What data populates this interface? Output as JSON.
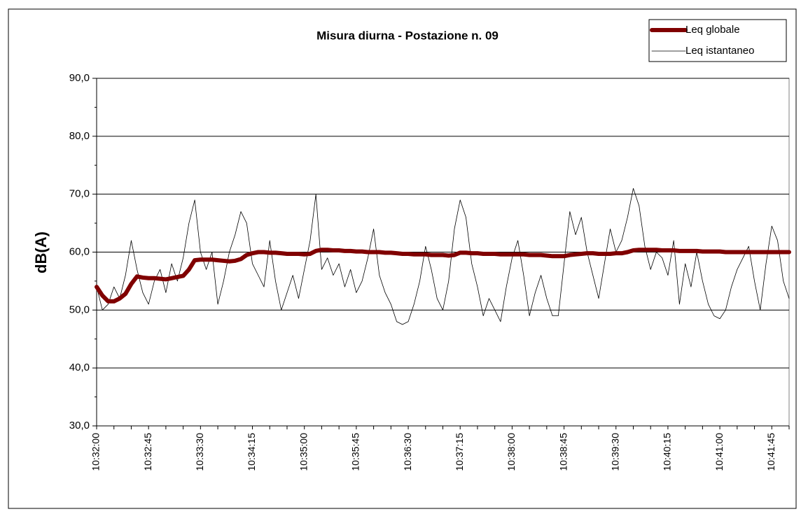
{
  "chart_data": {
    "type": "line",
    "title": "Misura diurna - Postazione n. 09",
    "y_label": "dB(A)",
    "categories": [
      "10:32:00",
      null,
      null,
      null,
      null,
      null,
      null,
      null,
      null,
      "10:32:45",
      null,
      null,
      null,
      null,
      null,
      null,
      null,
      null,
      "10:33:30",
      null,
      null,
      null,
      null,
      null,
      null,
      null,
      null,
      "10:34:15",
      null,
      null,
      null,
      null,
      null,
      null,
      null,
      null,
      "10:35:00",
      null,
      null,
      null,
      null,
      null,
      null,
      null,
      null,
      "10:35:45",
      null,
      null,
      null,
      null,
      null,
      null,
      null,
      null,
      "10:36:30",
      null,
      null,
      null,
      null,
      null,
      null,
      null,
      null,
      "10:37:15",
      null,
      null,
      null,
      null,
      null,
      null,
      null,
      null,
      "10:38:00",
      null,
      null,
      null,
      null,
      null,
      null,
      null,
      null,
      "10:38:45",
      null,
      null,
      null,
      null,
      null,
      null,
      null,
      null,
      "10:39:30",
      null,
      null,
      null,
      null,
      null,
      null,
      null,
      null,
      "10:40:15",
      null,
      null,
      null,
      null,
      null,
      null,
      null,
      null,
      "10:41:00",
      null,
      null,
      null,
      null,
      null,
      null,
      null,
      null,
      "10:41:45",
      null,
      null,
      null
    ],
    "series": [
      {
        "name": "Leq globale",
        "color": "#800000",
        "values": [
          54,
          52.5,
          51.5,
          51.5,
          52,
          52.8,
          54.5,
          55.8,
          55.6,
          55.5,
          55.5,
          55.4,
          55.3,
          55.5,
          55.7,
          55.9,
          57,
          58.6,
          58.7,
          58.7,
          58.7,
          58.6,
          58.5,
          58.4,
          58.5,
          58.8,
          59.5,
          59.8,
          60,
          60,
          59.9,
          59.9,
          59.8,
          59.7,
          59.7,
          59.7,
          59.6,
          59.7,
          60.2,
          60.4,
          60.4,
          60.3,
          60.3,
          60.2,
          60.2,
          60.1,
          60.1,
          60,
          60,
          60,
          59.9,
          59.9,
          59.8,
          59.7,
          59.7,
          59.6,
          59.6,
          59.6,
          59.5,
          59.5,
          59.5,
          59.4,
          59.5,
          59.9,
          59.9,
          59.8,
          59.8,
          59.7,
          59.7,
          59.7,
          59.6,
          59.6,
          59.6,
          59.6,
          59.6,
          59.5,
          59.5,
          59.5,
          59.4,
          59.3,
          59.3,
          59.3,
          59.5,
          59.6,
          59.7,
          59.8,
          59.8,
          59.7,
          59.7,
          59.7,
          59.8,
          59.8,
          60,
          60.3,
          60.4,
          60.4,
          60.4,
          60.4,
          60.3,
          60.3,
          60.3,
          60.2,
          60.2,
          60.2,
          60.2,
          60.1,
          60.1,
          60.1,
          60.1,
          60,
          60,
          60,
          60,
          60,
          60,
          60,
          60,
          60,
          60,
          60,
          60
        ]
      },
      {
        "name": "Leq istantaneo",
        "color": "#000000",
        "values": [
          54,
          50,
          51,
          54,
          52,
          56,
          62,
          57,
          53,
          51,
          55,
          57,
          53,
          58,
          55,
          59,
          65,
          69,
          60,
          57,
          60,
          51,
          55,
          60,
          63,
          67,
          65,
          58,
          56,
          54,
          62,
          55,
          50,
          53,
          56,
          52,
          57,
          62,
          70,
          57,
          59,
          56,
          58,
          54,
          57,
          53,
          55,
          59,
          64,
          56,
          53,
          51,
          48,
          47.5,
          48,
          51,
          55,
          61,
          57,
          52,
          50,
          55,
          64,
          69,
          66,
          58,
          54,
          49,
          52,
          50,
          48,
          54,
          59,
          62,
          56,
          49,
          53,
          56,
          52,
          49,
          49,
          58,
          67,
          63,
          66,
          60,
          56,
          52,
          58,
          64,
          60,
          62,
          66,
          71,
          68,
          61,
          57,
          60,
          59,
          56,
          62,
          51,
          58,
          54,
          60,
          55,
          51,
          49,
          48.5,
          50,
          54,
          57,
          59,
          61,
          55,
          50,
          58,
          64.5,
          62,
          55,
          52
        ]
      }
    ],
    "ylim": [
      30,
      90
    ],
    "yticks": [
      {
        "value": 30,
        "label": "30,0"
      },
      {
        "value": 40,
        "label": "40,0"
      },
      {
        "value": 50,
        "label": "50,0"
      },
      {
        "value": 60,
        "label": "60,0"
      },
      {
        "value": 70,
        "label": "70,0"
      },
      {
        "value": 80,
        "label": "80,0"
      },
      {
        "value": 90,
        "label": "90,0"
      }
    ],
    "grid": true,
    "legend": "upper right"
  }
}
